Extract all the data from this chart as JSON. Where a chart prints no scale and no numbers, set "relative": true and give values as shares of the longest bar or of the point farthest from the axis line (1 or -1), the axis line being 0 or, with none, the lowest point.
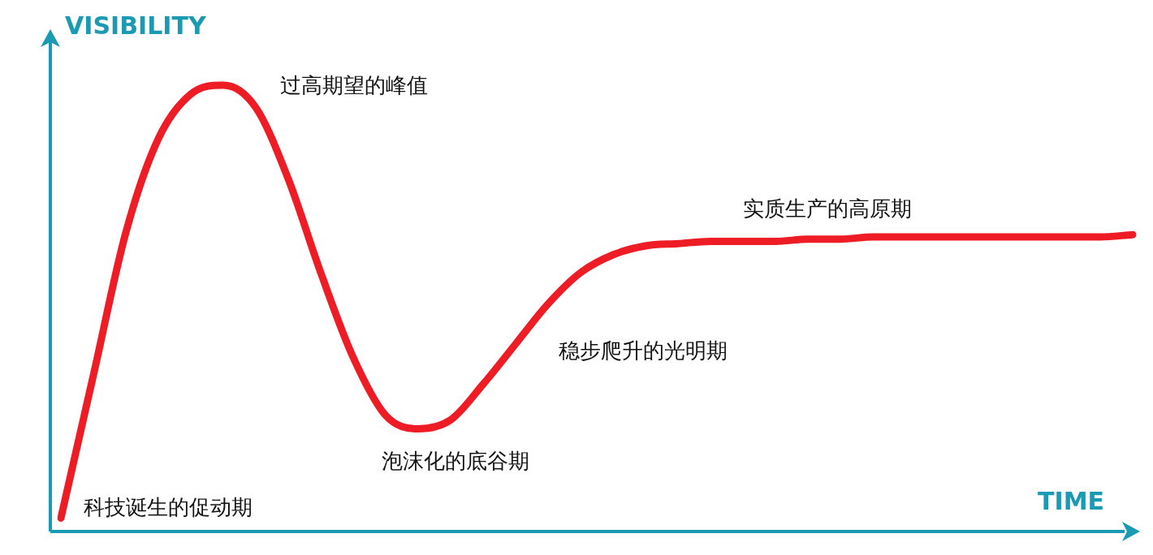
{
  "chart_data": {
    "type": "line",
    "relative": true,
    "xlabel": "TIME",
    "ylabel": "VISIBILITY",
    "categories": [
      null,
      null,
      null,
      null,
      null,
      null,
      null,
      null,
      null,
      null,
      null,
      null,
      null,
      null,
      null,
      null,
      null,
      null,
      null,
      null,
      null,
      null,
      null,
      null,
      null,
      null,
      null,
      null,
      null,
      null,
      null,
      null,
      null,
      null
    ],
    "series": [
      {
        "color": "#ee1c25",
        "values": [
          0.03,
          0.35,
          0.67,
          0.88,
          0.98,
          1.0,
          0.95,
          0.79,
          0.58,
          0.39,
          0.26,
          0.23,
          0.25,
          0.33,
          0.42,
          0.51,
          0.58,
          0.62,
          0.64,
          0.645,
          0.65,
          0.65,
          0.65,
          0.655,
          0.655,
          0.66,
          0.66,
          0.66,
          0.66,
          0.66,
          0.66,
          0.66,
          0.66,
          0.665
        ]
      }
    ],
    "annotations": [
      "科技诞生的促动期",
      "过高期望的峰值",
      "泡沫化的底谷期",
      "稳步爬升的光明期",
      "实质生产的高原期"
    ]
  }
}
